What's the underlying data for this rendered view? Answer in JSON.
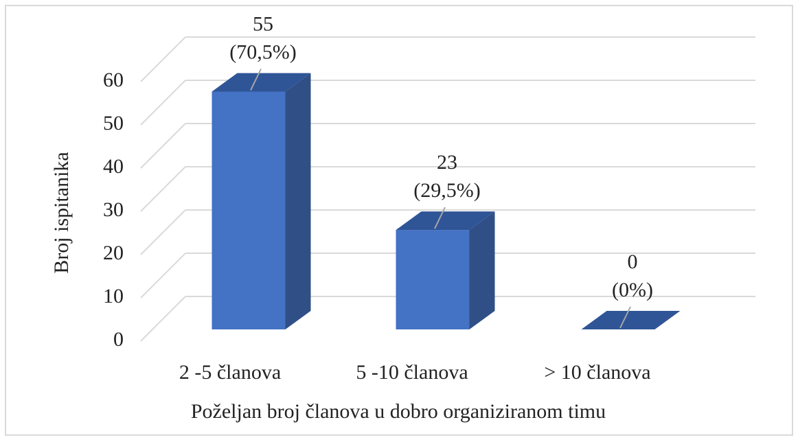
{
  "chart_data": {
    "type": "bar3d",
    "x_label": "Poželjan broj članova u dobro organiziranom timu",
    "y_label": "Broj ispitanika",
    "categories": [
      "2 -5 članova",
      "5 -10 članova",
      "> 10 članova"
    ],
    "values": [
      55,
      23,
      0
    ],
    "percent_labels": [
      "(70,5%)",
      "(29,5%)",
      "(0%)"
    ],
    "color": "#4472c4",
    "ylim": [
      0,
      60
    ],
    "yticks": [
      0,
      10,
      20,
      30,
      40,
      50,
      60
    ],
    "grid": true
  }
}
